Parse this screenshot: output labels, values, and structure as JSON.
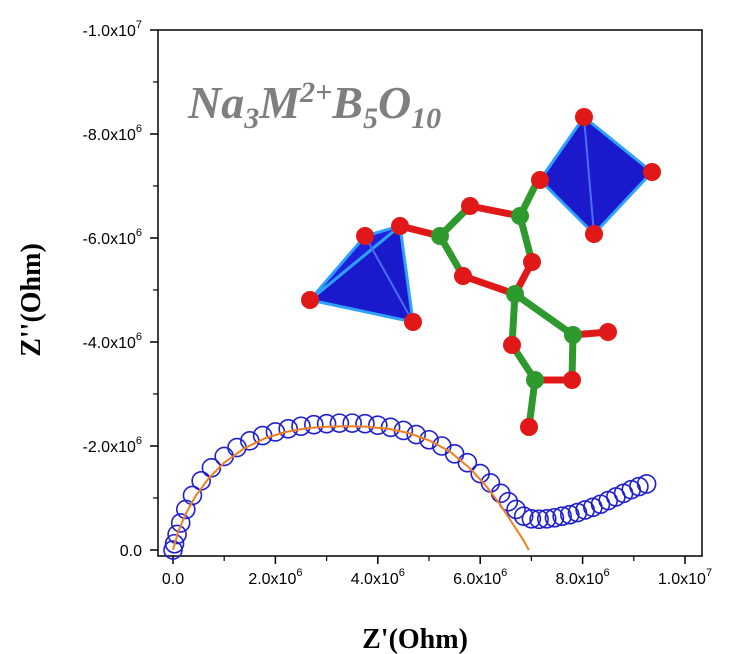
{
  "chart_data": {
    "type": "scatter",
    "title": "",
    "xlabel": "Z'(Ohm)",
    "ylabel": "Z''(Ohm)",
    "xlim": [
      0,
      10000000
    ],
    "ylim": [
      0,
      -10000000
    ],
    "x_ticks": [
      {
        "value": 0,
        "mantissa": "0.0",
        "exp": ""
      },
      {
        "value": 2000000,
        "mantissa": "2.0x10",
        "exp": "6"
      },
      {
        "value": 4000000,
        "mantissa": "4.0x10",
        "exp": "6"
      },
      {
        "value": 6000000,
        "mantissa": "6.0x10",
        "exp": "6"
      },
      {
        "value": 8000000,
        "mantissa": "8.0x10",
        "exp": "6"
      },
      {
        "value": 10000000,
        "mantissa": "1.0x10",
        "exp": "7"
      }
    ],
    "y_ticks": [
      {
        "value": 0,
        "mantissa": "0.0",
        "exp": ""
      },
      {
        "value": -2000000,
        "mantissa": "-2.0x10",
        "exp": "6"
      },
      {
        "value": -4000000,
        "mantissa": "-4.0x10",
        "exp": "6"
      },
      {
        "value": -6000000,
        "mantissa": "-6.0x10",
        "exp": "6"
      },
      {
        "value": -8000000,
        "mantissa": "-8.0x10",
        "exp": "6"
      },
      {
        "value": -10000000,
        "mantissa": "-1.0x10",
        "exp": "7"
      }
    ],
    "grid": false,
    "series": [
      {
        "kind": "scatter",
        "marker": "open-circle",
        "color": "#1f1fd0",
        "x": [
          0,
          30000,
          80000,
          150000,
          250000,
          380000,
          550000,
          750000,
          1000000,
          1250000,
          1500000,
          1750000,
          2000000,
          2250000,
          2500000,
          2750000,
          3000000,
          3250000,
          3500000,
          3750000,
          4000000,
          4250000,
          4500000,
          4750000,
          5000000,
          5250000,
          5500000,
          5750000,
          6000000,
          6200000,
          6400000,
          6550000,
          6700000,
          6850000,
          7000000,
          7150000,
          7300000,
          7450000,
          7600000,
          7750000,
          7900000,
          8050000,
          8200000,
          8350000,
          8500000,
          8650000,
          8800000,
          8950000,
          9100000,
          9250000
        ],
        "y": [
          0,
          -120000,
          -300000,
          -520000,
          -780000,
          -1050000,
          -1330000,
          -1580000,
          -1800000,
          -1970000,
          -2100000,
          -2200000,
          -2270000,
          -2330000,
          -2380000,
          -2410000,
          -2430000,
          -2440000,
          -2440000,
          -2430000,
          -2400000,
          -2360000,
          -2300000,
          -2220000,
          -2120000,
          -2000000,
          -1850000,
          -1680000,
          -1470000,
          -1290000,
          -1090000,
          -930000,
          -780000,
          -650000,
          -600000,
          -590000,
          -600000,
          -620000,
          -650000,
          -680000,
          -720000,
          -770000,
          -820000,
          -880000,
          -950000,
          -1020000,
          -1090000,
          -1160000,
          -1220000,
          -1270000
        ]
      },
      {
        "kind": "line",
        "color": "#f07f1e",
        "x": [
          0,
          100000,
          250000,
          450000,
          700000,
          1000000,
          1400000,
          1800000,
          2200000,
          2600000,
          3000000,
          3400000,
          3800000,
          4200000,
          4600000,
          5000000,
          5400000,
          5800000,
          6100000,
          6400000,
          6650000,
          6850000,
          6950000
        ],
        "y": [
          0,
          -350000,
          -700000,
          -1050000,
          -1380000,
          -1680000,
          -1960000,
          -2150000,
          -2270000,
          -2340000,
          -2370000,
          -2380000,
          -2370000,
          -2330000,
          -2250000,
          -2110000,
          -1900000,
          -1570000,
          -1250000,
          -860000,
          -480000,
          -180000,
          0
        ]
      }
    ],
    "annotation": {
      "formula": [
        {
          "text": "Na",
          "pos": "base"
        },
        {
          "text": "3",
          "pos": "sub"
        },
        {
          "text": "M",
          "pos": "base"
        },
        {
          "text": "2+",
          "pos": "sup"
        },
        {
          "text": "B",
          "pos": "base"
        },
        {
          "text": "5",
          "pos": "sub"
        },
        {
          "text": "O",
          "pos": "base"
        },
        {
          "text": "10",
          "pos": "sub"
        }
      ],
      "formula_color": "#7f7f7f",
      "inset": "crystal-structure-polyhedra",
      "inset_colors": {
        "polyhedron": "#1a1acc",
        "polyhedron_edge": "#2ea0ff",
        "oxygen": "#e01818",
        "boron": "#2e9a2e",
        "bond_green": "#2e9a2e",
        "bond_red": "#e01818"
      }
    }
  }
}
